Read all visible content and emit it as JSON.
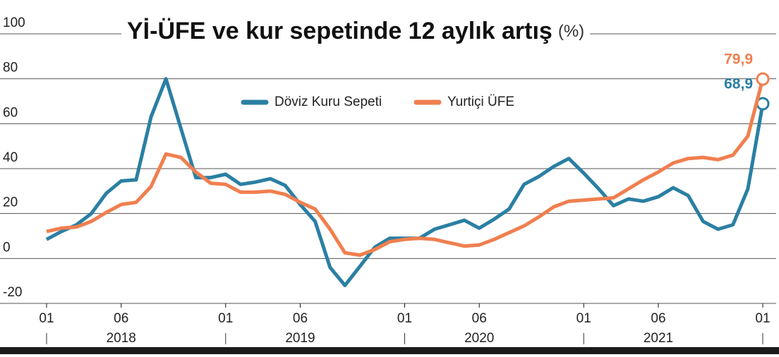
{
  "chart_data": {
    "type": "line",
    "title": "Yİ-ÜFE ve kur sepetinde 12 aylık artış",
    "unit": "(%)",
    "categories": [
      "01",
      null,
      null,
      null,
      null,
      "06",
      null,
      null,
      null,
      null,
      null,
      null,
      "01",
      null,
      null,
      null,
      null,
      "06",
      null,
      null,
      null,
      null,
      null,
      null,
      "01",
      null,
      null,
      null,
      null,
      "06",
      null,
      null,
      null,
      null,
      null,
      null,
      "01",
      null,
      null,
      null,
      null,
      "06",
      null,
      null,
      null,
      null,
      null,
      null,
      "01"
    ],
    "years": [
      "2018",
      "2019",
      "2020",
      "2021"
    ],
    "series": [
      {
        "name": "Döviz Kuru Sepeti",
        "color": "#2a7fa3",
        "values": [
          8.5,
          12,
          15,
          20,
          29,
          34.5,
          35,
          63,
          80,
          58,
          36,
          36,
          37.5,
          33,
          34,
          35.5,
          32.5,
          24,
          16.5,
          -4,
          -12,
          -3.5,
          5,
          9,
          9,
          9,
          13,
          15,
          17,
          13.5,
          17.5,
          22,
          33,
          36.5,
          41,
          44.5,
          38,
          31,
          23.5,
          26.5,
          25.5,
          27.5,
          31.5,
          28,
          16.5,
          13,
          15,
          31,
          68.9
        ],
        "value_labels": {
          "48": "68,9"
        }
      },
      {
        "name": "Yurtiçi ÜFE",
        "color": "#f07f4f",
        "values": [
          12,
          13.5,
          14,
          16.5,
          20.5,
          24,
          25,
          32,
          46.5,
          45,
          38.5,
          33.5,
          33,
          29.5,
          29.5,
          30,
          28.5,
          25,
          22,
          13,
          2.5,
          1.5,
          4,
          7.5,
          8.5,
          9,
          8.5,
          7,
          5.5,
          6,
          8.5,
          11.5,
          14.5,
          18.5,
          23,
          25.5,
          26,
          26.5,
          27,
          31,
          35,
          38.5,
          42.5,
          44.5,
          45,
          44,
          46,
          54.5,
          79.9
        ],
        "value_labels": {
          "48": "79,9"
        }
      }
    ],
    "ylim": [
      -20,
      100
    ],
    "yticks": [
      -20,
      0,
      20,
      40,
      60,
      80,
      100
    ],
    "grid": true
  }
}
